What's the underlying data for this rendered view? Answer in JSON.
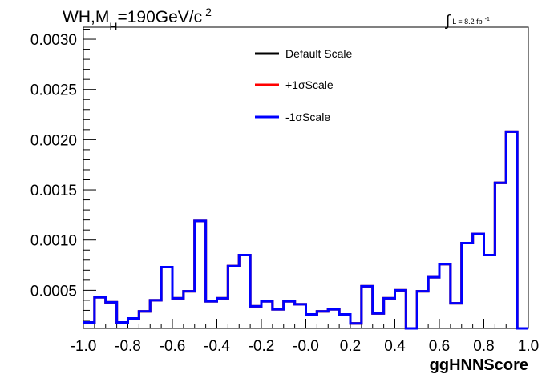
{
  "chart_data": {
    "type": "line",
    "style": "step-histogram",
    "title_parts": {
      "main_a": "WH,M",
      "sub": "H",
      "main_b": "=190GeV/c",
      "sup": "2"
    },
    "luminosity_label": {
      "prefix": "∫",
      "text": "L = 8.2 fb",
      "sup": "-1"
    },
    "xlabel": "ggHNNScore",
    "ylabel": "",
    "xlim": [
      -1.0,
      1.0
    ],
    "ylim": [
      0.00012,
      0.00312
    ],
    "x_ticks": [
      -1.0,
      -0.8,
      -0.6,
      -0.4,
      -0.2,
      0.0,
      0.2,
      0.4,
      0.6,
      0.8,
      1.0
    ],
    "x_tick_labels": [
      "-1.0",
      "-0.8",
      "-0.6",
      "-0.4",
      "-0.2",
      "-0.0",
      "0.2",
      "0.4",
      "0.6",
      "0.8",
      "1.0"
    ],
    "y_ticks": [
      0.0005,
      0.001,
      0.0015,
      0.002,
      0.0025,
      0.003
    ],
    "y_tick_labels": [
      "0.0005",
      "0.0010",
      "0.0015",
      "0.0020",
      "0.0025",
      "0.0030"
    ],
    "grid": false,
    "legend_position": "top-center",
    "bin_edges": [
      -1.0,
      -0.95,
      -0.9,
      -0.85,
      -0.8,
      -0.75,
      -0.7,
      -0.65,
      -0.6,
      -0.55,
      -0.5,
      -0.45,
      -0.4,
      -0.35,
      -0.3,
      -0.25,
      -0.2,
      -0.15,
      -0.1,
      -0.05,
      0.0,
      0.05,
      0.1,
      0.15,
      0.2,
      0.25,
      0.3,
      0.35,
      0.4,
      0.45,
      0.5,
      0.55,
      0.6,
      0.65,
      0.7,
      0.75,
      0.8,
      0.85,
      0.9,
      0.95,
      1.0
    ],
    "series": [
      {
        "name": "Default Scale",
        "color": "#000000",
        "values": [
          0.00018,
          0.00043,
          0.00038,
          0.00018,
          0.00022,
          0.00029,
          0.0004,
          0.00073,
          0.00042,
          0.00049,
          0.00119,
          0.00039,
          0.00042,
          0.00074,
          0.00085,
          0.00034,
          0.00039,
          0.00031,
          0.00039,
          0.00036,
          0.00026,
          0.00029,
          0.00031,
          0.00026,
          0.00017,
          0.00054,
          0.00027,
          0.00042,
          0.0005,
          0.00012,
          0.00049,
          0.00063,
          0.00076,
          0.00037,
          0.00097,
          0.00106,
          0.00085,
          0.00157,
          0.00208,
          0.00012
        ]
      },
      {
        "name": "+1σScale",
        "color": "#ff0000",
        "values": [
          0.00018,
          0.00043,
          0.00038,
          0.00018,
          0.00022,
          0.00029,
          0.0004,
          0.00073,
          0.00042,
          0.00049,
          0.00119,
          0.00039,
          0.00042,
          0.00074,
          0.00085,
          0.00034,
          0.00039,
          0.00031,
          0.00039,
          0.00036,
          0.00026,
          0.00029,
          0.00031,
          0.00026,
          0.00017,
          0.00054,
          0.00027,
          0.00042,
          0.0005,
          0.00012,
          0.00049,
          0.00063,
          0.00076,
          0.00037,
          0.00097,
          0.00106,
          0.00085,
          0.00157,
          0.00208,
          0.00012
        ]
      },
      {
        "name": "-1σScale",
        "color": "#0000ff",
        "values": [
          0.00018,
          0.00043,
          0.00038,
          0.00018,
          0.00022,
          0.00029,
          0.0004,
          0.00073,
          0.00042,
          0.00049,
          0.00119,
          0.00039,
          0.00042,
          0.00074,
          0.00085,
          0.00034,
          0.00039,
          0.00031,
          0.00039,
          0.00036,
          0.00026,
          0.00029,
          0.00031,
          0.00026,
          0.00017,
          0.00054,
          0.00027,
          0.00042,
          0.0005,
          0.00012,
          0.00049,
          0.00063,
          0.00076,
          0.00037,
          0.00097,
          0.00106,
          0.00085,
          0.00157,
          0.00208,
          0.00012
        ]
      }
    ]
  }
}
